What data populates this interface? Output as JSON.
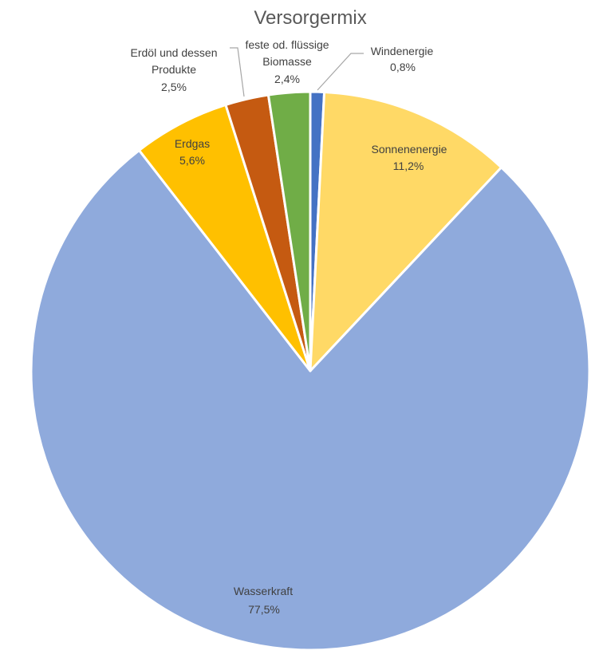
{
  "chart_data": {
    "type": "pie",
    "title": "Versorgermix",
    "slices": [
      {
        "label": "Windenergie",
        "value": 0.8,
        "value_label": "0,8%",
        "color": "#4472C4"
      },
      {
        "label": "Sonnenenergie",
        "value": 11.2,
        "value_label": "11,2%",
        "color": "#FFD966"
      },
      {
        "label": "Wasserkraft",
        "value": 77.5,
        "value_label": "77,5%",
        "color": "#8FAADC"
      },
      {
        "label": "Erdgas",
        "value": 5.6,
        "value_label": "5,6%",
        "color": "#FFC000"
      },
      {
        "label": "Erdöl und dessen Produkte",
        "value": 2.5,
        "value_label": "2,5%",
        "color": "#C55A11"
      },
      {
        "label": "feste od. flüssige Biomasse",
        "value": 2.4,
        "value_label": "2,4%",
        "color": "#70AD47"
      }
    ],
    "legend": "none"
  }
}
